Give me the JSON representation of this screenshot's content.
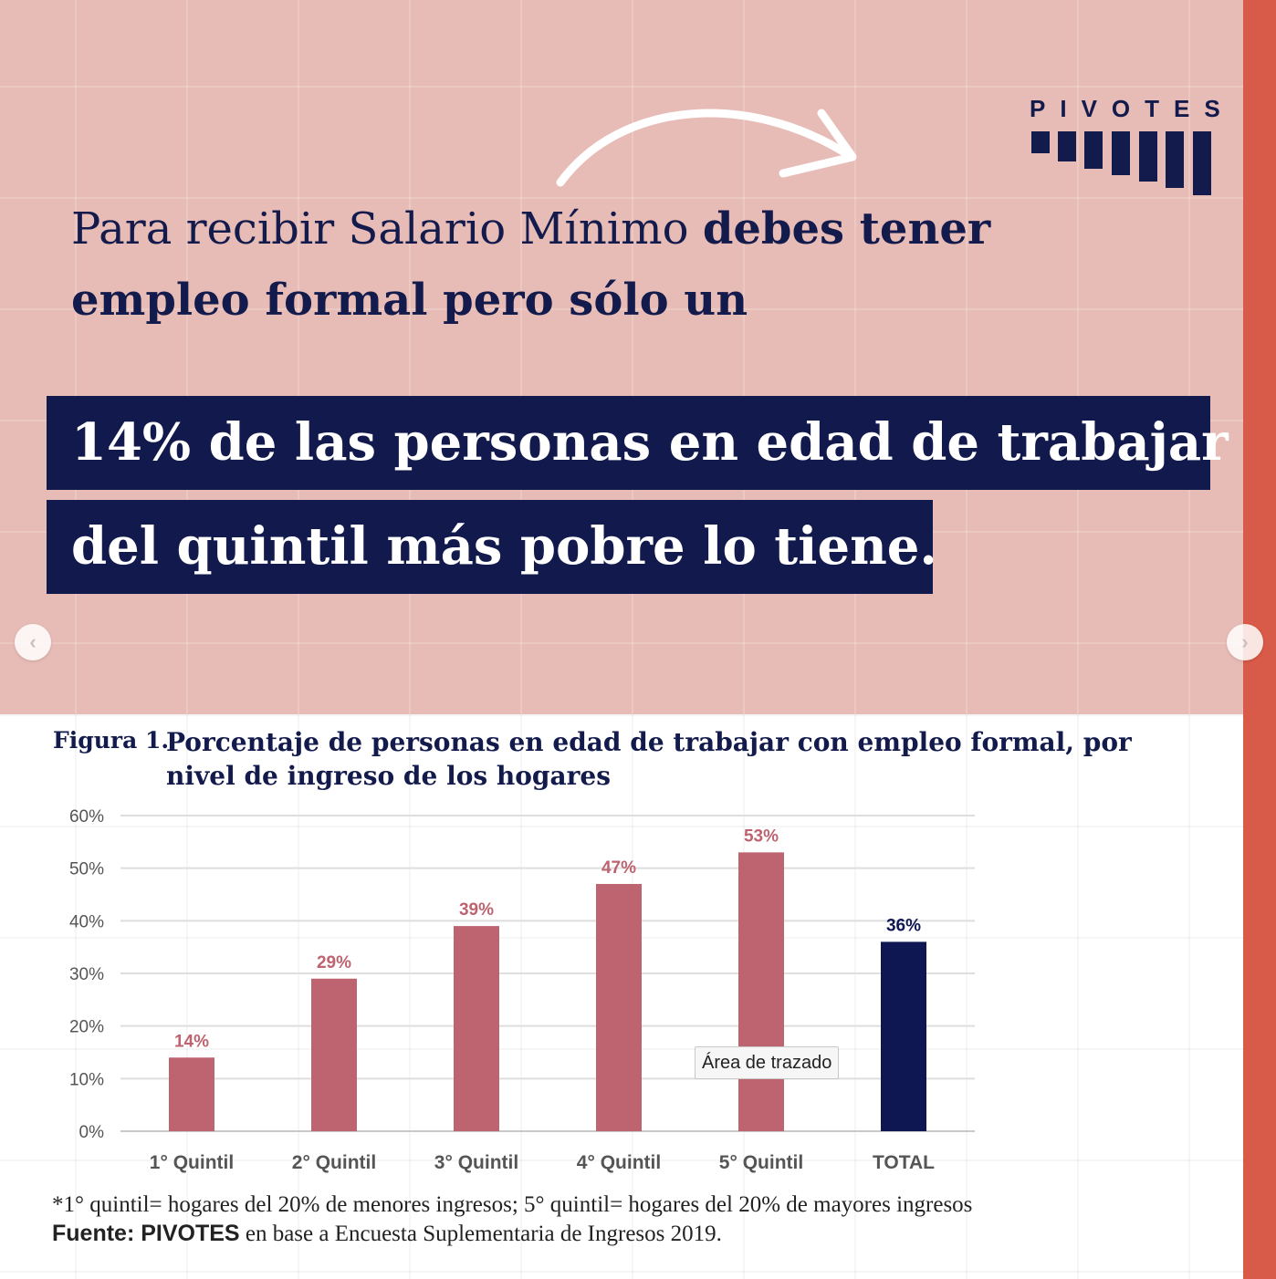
{
  "brand": {
    "name": "PIVOTES",
    "navy": "#131a4c",
    "pink": "#e8bcb6",
    "accent": "#d85a48",
    "bar_color": "#bd6470",
    "total_color": "#0f1752"
  },
  "headline": {
    "intro_regular": "Para recibir Salario Mínimo ",
    "intro_bold": "debes tener empleo formal pero sólo un",
    "highlight_line1": "14% de las personas en edad de trabajar",
    "highlight_line2": "del quintil más pobre lo tiene."
  },
  "nav": {
    "prev_icon": "chevron-left-icon",
    "next_icon": "chevron-right-icon",
    "prev_glyph": "‹",
    "next_glyph": "›"
  },
  "figure": {
    "label": "Figura 1.",
    "title": "Porcentaje de personas en edad de trabajar con empleo formal, por nivel de ingreso de los hogares",
    "tooltip": "Área de trazado",
    "note": "*1° quintil= hogares del 20% de menores ingresos; 5° quintil= hogares del 20% de mayores ingresos",
    "source_bold": "Fuente: PIVOTES",
    "source_rest": " en base a Encuesta Suplementaria de Ingresos 2019."
  },
  "chart_data": {
    "type": "bar",
    "title": "Porcentaje de personas en edad de trabajar con empleo formal, por nivel de ingreso de los hogares",
    "categories": [
      "1° Quintil",
      "2° Quintil",
      "3° Quintil",
      "4° Quintil",
      "5° Quintil",
      "TOTAL"
    ],
    "values": [
      14,
      29,
      39,
      47,
      53,
      36
    ],
    "data_labels": [
      "14%",
      "29%",
      "39%",
      "47%",
      "53%",
      "36%"
    ],
    "y_ticks": [
      "0%",
      "10%",
      "20%",
      "30%",
      "40%",
      "50%",
      "60%"
    ],
    "ylim": [
      0,
      60
    ],
    "grid": true,
    "legend": "none",
    "xlabel": "",
    "ylabel": ""
  }
}
